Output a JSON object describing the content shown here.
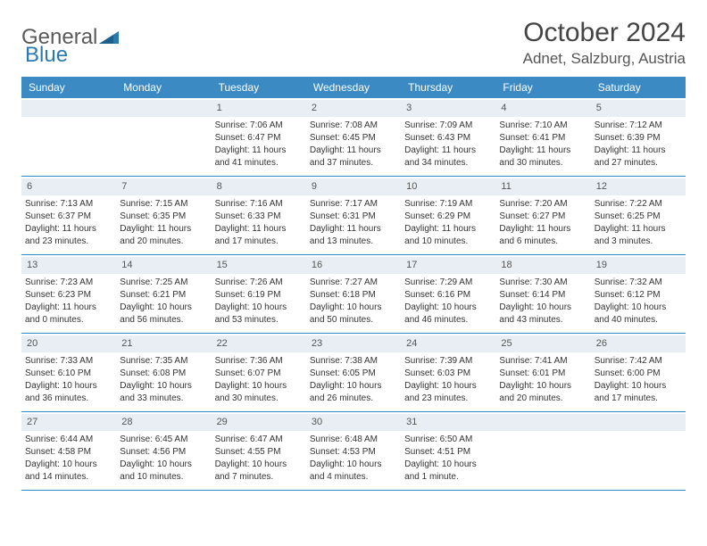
{
  "colors": {
    "header_bg": "#3b8ac4",
    "header_text": "#ffffff",
    "daynum_bg": "#e8eef3",
    "row_border": "#3b8ac4",
    "text": "#333333",
    "logo_gray": "#5a5a5a",
    "logo_blue": "#2a7ab0"
  },
  "logo": {
    "part1": "General",
    "part2": "Blue"
  },
  "title": "October 2024",
  "location": "Adnet, Salzburg, Austria",
  "dayHeaders": [
    "Sunday",
    "Monday",
    "Tuesday",
    "Wednesday",
    "Thursday",
    "Friday",
    "Saturday"
  ],
  "weeks": [
    [
      null,
      null,
      {
        "n": "1",
        "sr": "7:06 AM",
        "ss": "6:47 PM",
        "dl": "11 hours and 41 minutes."
      },
      {
        "n": "2",
        "sr": "7:08 AM",
        "ss": "6:45 PM",
        "dl": "11 hours and 37 minutes."
      },
      {
        "n": "3",
        "sr": "7:09 AM",
        "ss": "6:43 PM",
        "dl": "11 hours and 34 minutes."
      },
      {
        "n": "4",
        "sr": "7:10 AM",
        "ss": "6:41 PM",
        "dl": "11 hours and 30 minutes."
      },
      {
        "n": "5",
        "sr": "7:12 AM",
        "ss": "6:39 PM",
        "dl": "11 hours and 27 minutes."
      }
    ],
    [
      {
        "n": "6",
        "sr": "7:13 AM",
        "ss": "6:37 PM",
        "dl": "11 hours and 23 minutes."
      },
      {
        "n": "7",
        "sr": "7:15 AM",
        "ss": "6:35 PM",
        "dl": "11 hours and 20 minutes."
      },
      {
        "n": "8",
        "sr": "7:16 AM",
        "ss": "6:33 PM",
        "dl": "11 hours and 17 minutes."
      },
      {
        "n": "9",
        "sr": "7:17 AM",
        "ss": "6:31 PM",
        "dl": "11 hours and 13 minutes."
      },
      {
        "n": "10",
        "sr": "7:19 AM",
        "ss": "6:29 PM",
        "dl": "11 hours and 10 minutes."
      },
      {
        "n": "11",
        "sr": "7:20 AM",
        "ss": "6:27 PM",
        "dl": "11 hours and 6 minutes."
      },
      {
        "n": "12",
        "sr": "7:22 AM",
        "ss": "6:25 PM",
        "dl": "11 hours and 3 minutes."
      }
    ],
    [
      {
        "n": "13",
        "sr": "7:23 AM",
        "ss": "6:23 PM",
        "dl": "11 hours and 0 minutes."
      },
      {
        "n": "14",
        "sr": "7:25 AM",
        "ss": "6:21 PM",
        "dl": "10 hours and 56 minutes."
      },
      {
        "n": "15",
        "sr": "7:26 AM",
        "ss": "6:19 PM",
        "dl": "10 hours and 53 minutes."
      },
      {
        "n": "16",
        "sr": "7:27 AM",
        "ss": "6:18 PM",
        "dl": "10 hours and 50 minutes."
      },
      {
        "n": "17",
        "sr": "7:29 AM",
        "ss": "6:16 PM",
        "dl": "10 hours and 46 minutes."
      },
      {
        "n": "18",
        "sr": "7:30 AM",
        "ss": "6:14 PM",
        "dl": "10 hours and 43 minutes."
      },
      {
        "n": "19",
        "sr": "7:32 AM",
        "ss": "6:12 PM",
        "dl": "10 hours and 40 minutes."
      }
    ],
    [
      {
        "n": "20",
        "sr": "7:33 AM",
        "ss": "6:10 PM",
        "dl": "10 hours and 36 minutes."
      },
      {
        "n": "21",
        "sr": "7:35 AM",
        "ss": "6:08 PM",
        "dl": "10 hours and 33 minutes."
      },
      {
        "n": "22",
        "sr": "7:36 AM",
        "ss": "6:07 PM",
        "dl": "10 hours and 30 minutes."
      },
      {
        "n": "23",
        "sr": "7:38 AM",
        "ss": "6:05 PM",
        "dl": "10 hours and 26 minutes."
      },
      {
        "n": "24",
        "sr": "7:39 AM",
        "ss": "6:03 PM",
        "dl": "10 hours and 23 minutes."
      },
      {
        "n": "25",
        "sr": "7:41 AM",
        "ss": "6:01 PM",
        "dl": "10 hours and 20 minutes."
      },
      {
        "n": "26",
        "sr": "7:42 AM",
        "ss": "6:00 PM",
        "dl": "10 hours and 17 minutes."
      }
    ],
    [
      {
        "n": "27",
        "sr": "6:44 AM",
        "ss": "4:58 PM",
        "dl": "10 hours and 14 minutes."
      },
      {
        "n": "28",
        "sr": "6:45 AM",
        "ss": "4:56 PM",
        "dl": "10 hours and 10 minutes."
      },
      {
        "n": "29",
        "sr": "6:47 AM",
        "ss": "4:55 PM",
        "dl": "10 hours and 7 minutes."
      },
      {
        "n": "30",
        "sr": "6:48 AM",
        "ss": "4:53 PM",
        "dl": "10 hours and 4 minutes."
      },
      {
        "n": "31",
        "sr": "6:50 AM",
        "ss": "4:51 PM",
        "dl": "10 hours and 1 minute."
      },
      null,
      null
    ]
  ],
  "labels": {
    "sunrise": "Sunrise: ",
    "sunset": "Sunset: ",
    "daylight": "Daylight: "
  }
}
